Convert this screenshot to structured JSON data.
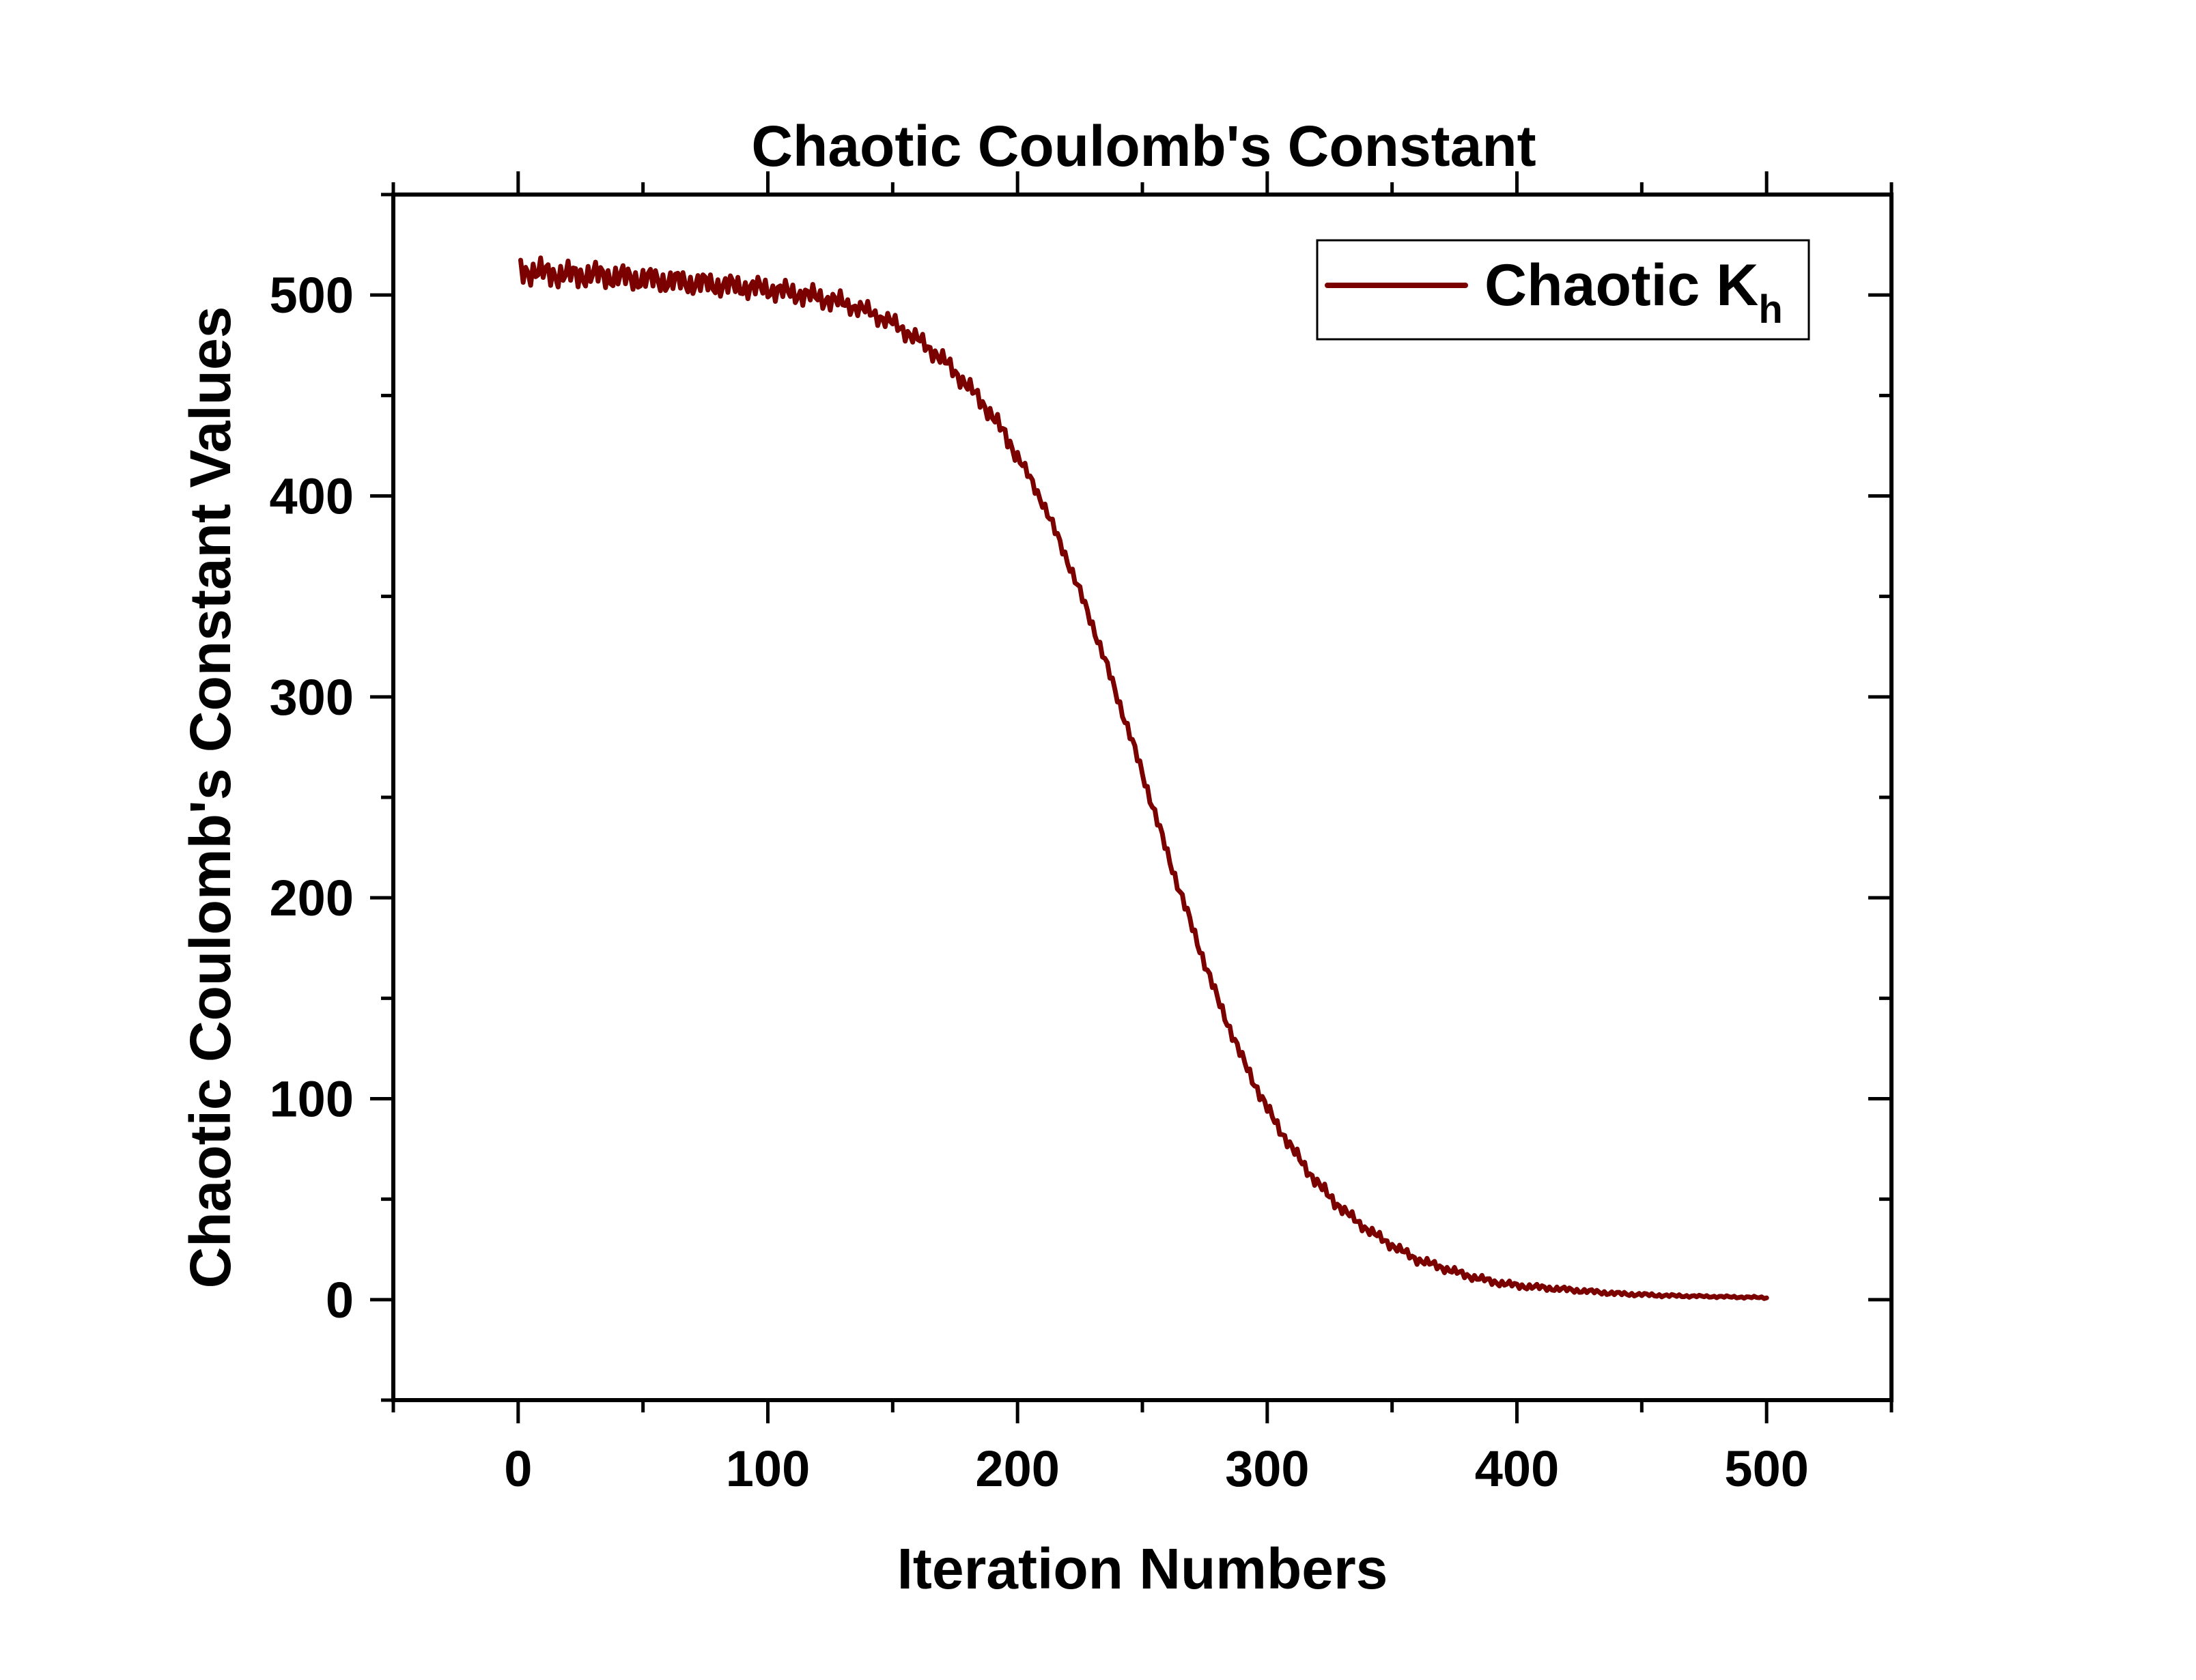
{
  "chart_data": {
    "type": "line",
    "title": "Chaotic Coulomb's Constant",
    "xlabel": "Iteration Numbers",
    "ylabel": "Chaotic Coulomb's Constant Values",
    "xlim": [
      -50,
      550
    ],
    "ylim": [
      -50,
      550
    ],
    "xticks": [
      0,
      100,
      200,
      300,
      400,
      500
    ],
    "xtick_labels": [
      "0",
      "100",
      "200",
      "300",
      "400",
      "500"
    ],
    "yticks": [
      0,
      100,
      200,
      300,
      400,
      500
    ],
    "ytick_labels": [
      "0",
      "100",
      "200",
      "300",
      "400",
      "500"
    ],
    "x_minor_step": 50,
    "y_minor_step": 50,
    "grid": false,
    "legend": {
      "position": "top-right",
      "entries": [
        {
          "label": "Chaotic K",
          "subscript": "h",
          "color": "#7b0000"
        }
      ]
    },
    "series": [
      {
        "name": "Chaotic Kh",
        "color": "#7b0000",
        "description": "logistic-style decay from ~515 to ~0 with oscillation near start",
        "x": [
          1,
          5,
          10,
          20,
          30,
          40,
          50,
          60,
          70,
          80,
          90,
          100,
          110,
          120,
          130,
          140,
          150,
          160,
          170,
          180,
          190,
          200,
          210,
          220,
          230,
          240,
          250,
          260,
          270,
          280,
          290,
          300,
          310,
          320,
          330,
          340,
          350,
          360,
          370,
          380,
          390,
          400,
          420,
          440,
          460,
          480,
          500
        ],
        "values": [
          512,
          512,
          511,
          510,
          510,
          509,
          508,
          507,
          506,
          505,
          504,
          503,
          501,
          499,
          496,
          492,
          486,
          478,
          468,
          455,
          440,
          420,
          397,
          368,
          336,
          300,
          262,
          222,
          185,
          150,
          120,
          95,
          75,
          58,
          45,
          35,
          27,
          20,
          16,
          12,
          9,
          7,
          5,
          3,
          2,
          1.5,
          1
        ]
      }
    ]
  },
  "colors": {
    "series": "#7b0000",
    "axis": "#000000",
    "background": "#ffffff"
  }
}
